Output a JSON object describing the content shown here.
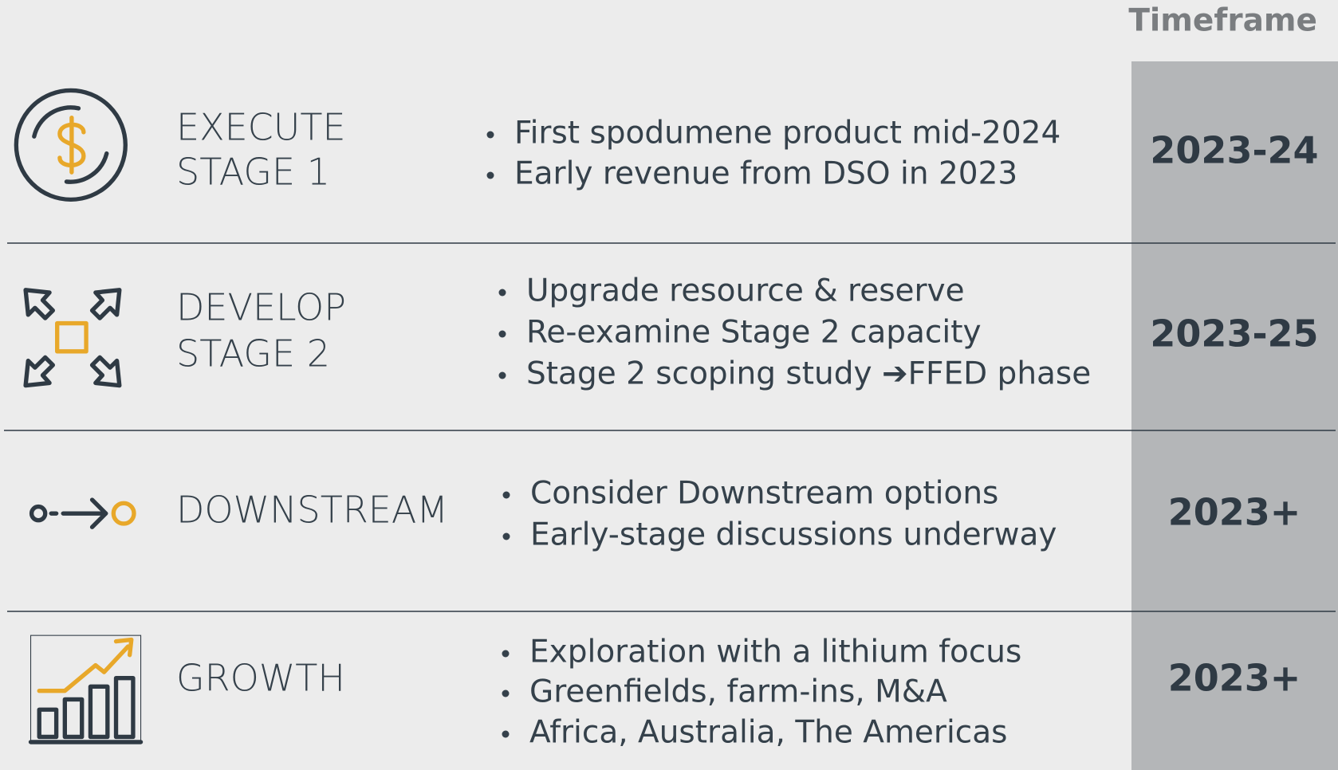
{
  "header": {
    "title": "Timeframe"
  },
  "rows": [
    {
      "label": [
        "EXECUTE",
        "STAGE 1"
      ],
      "bullets": [
        "First spodumene product mid-2024",
        "Early revenue from DSO in 2023"
      ],
      "timeframe": "2023-24"
    },
    {
      "label": [
        "DEVELOP",
        "STAGE 2"
      ],
      "bullets": [
        "Upgrade resource & reserve",
        "Re-examine Stage 2 capacity",
        "Stage 2 scoping study ➔FFED phase"
      ],
      "timeframe": "2023-25"
    },
    {
      "label": [
        "DOWNSTREAM"
      ],
      "bullets": [
        "Consider Downstream options",
        "Early-stage discussions underway"
      ],
      "timeframe": "2023+"
    },
    {
      "label": [
        "GROWTH"
      ],
      "bullets": [
        "Exploration with a lithium focus",
        "Greenfields, farm-ins, M&A",
        "Africa, Australia, The Americas"
      ],
      "timeframe": "2023+"
    }
  ]
}
